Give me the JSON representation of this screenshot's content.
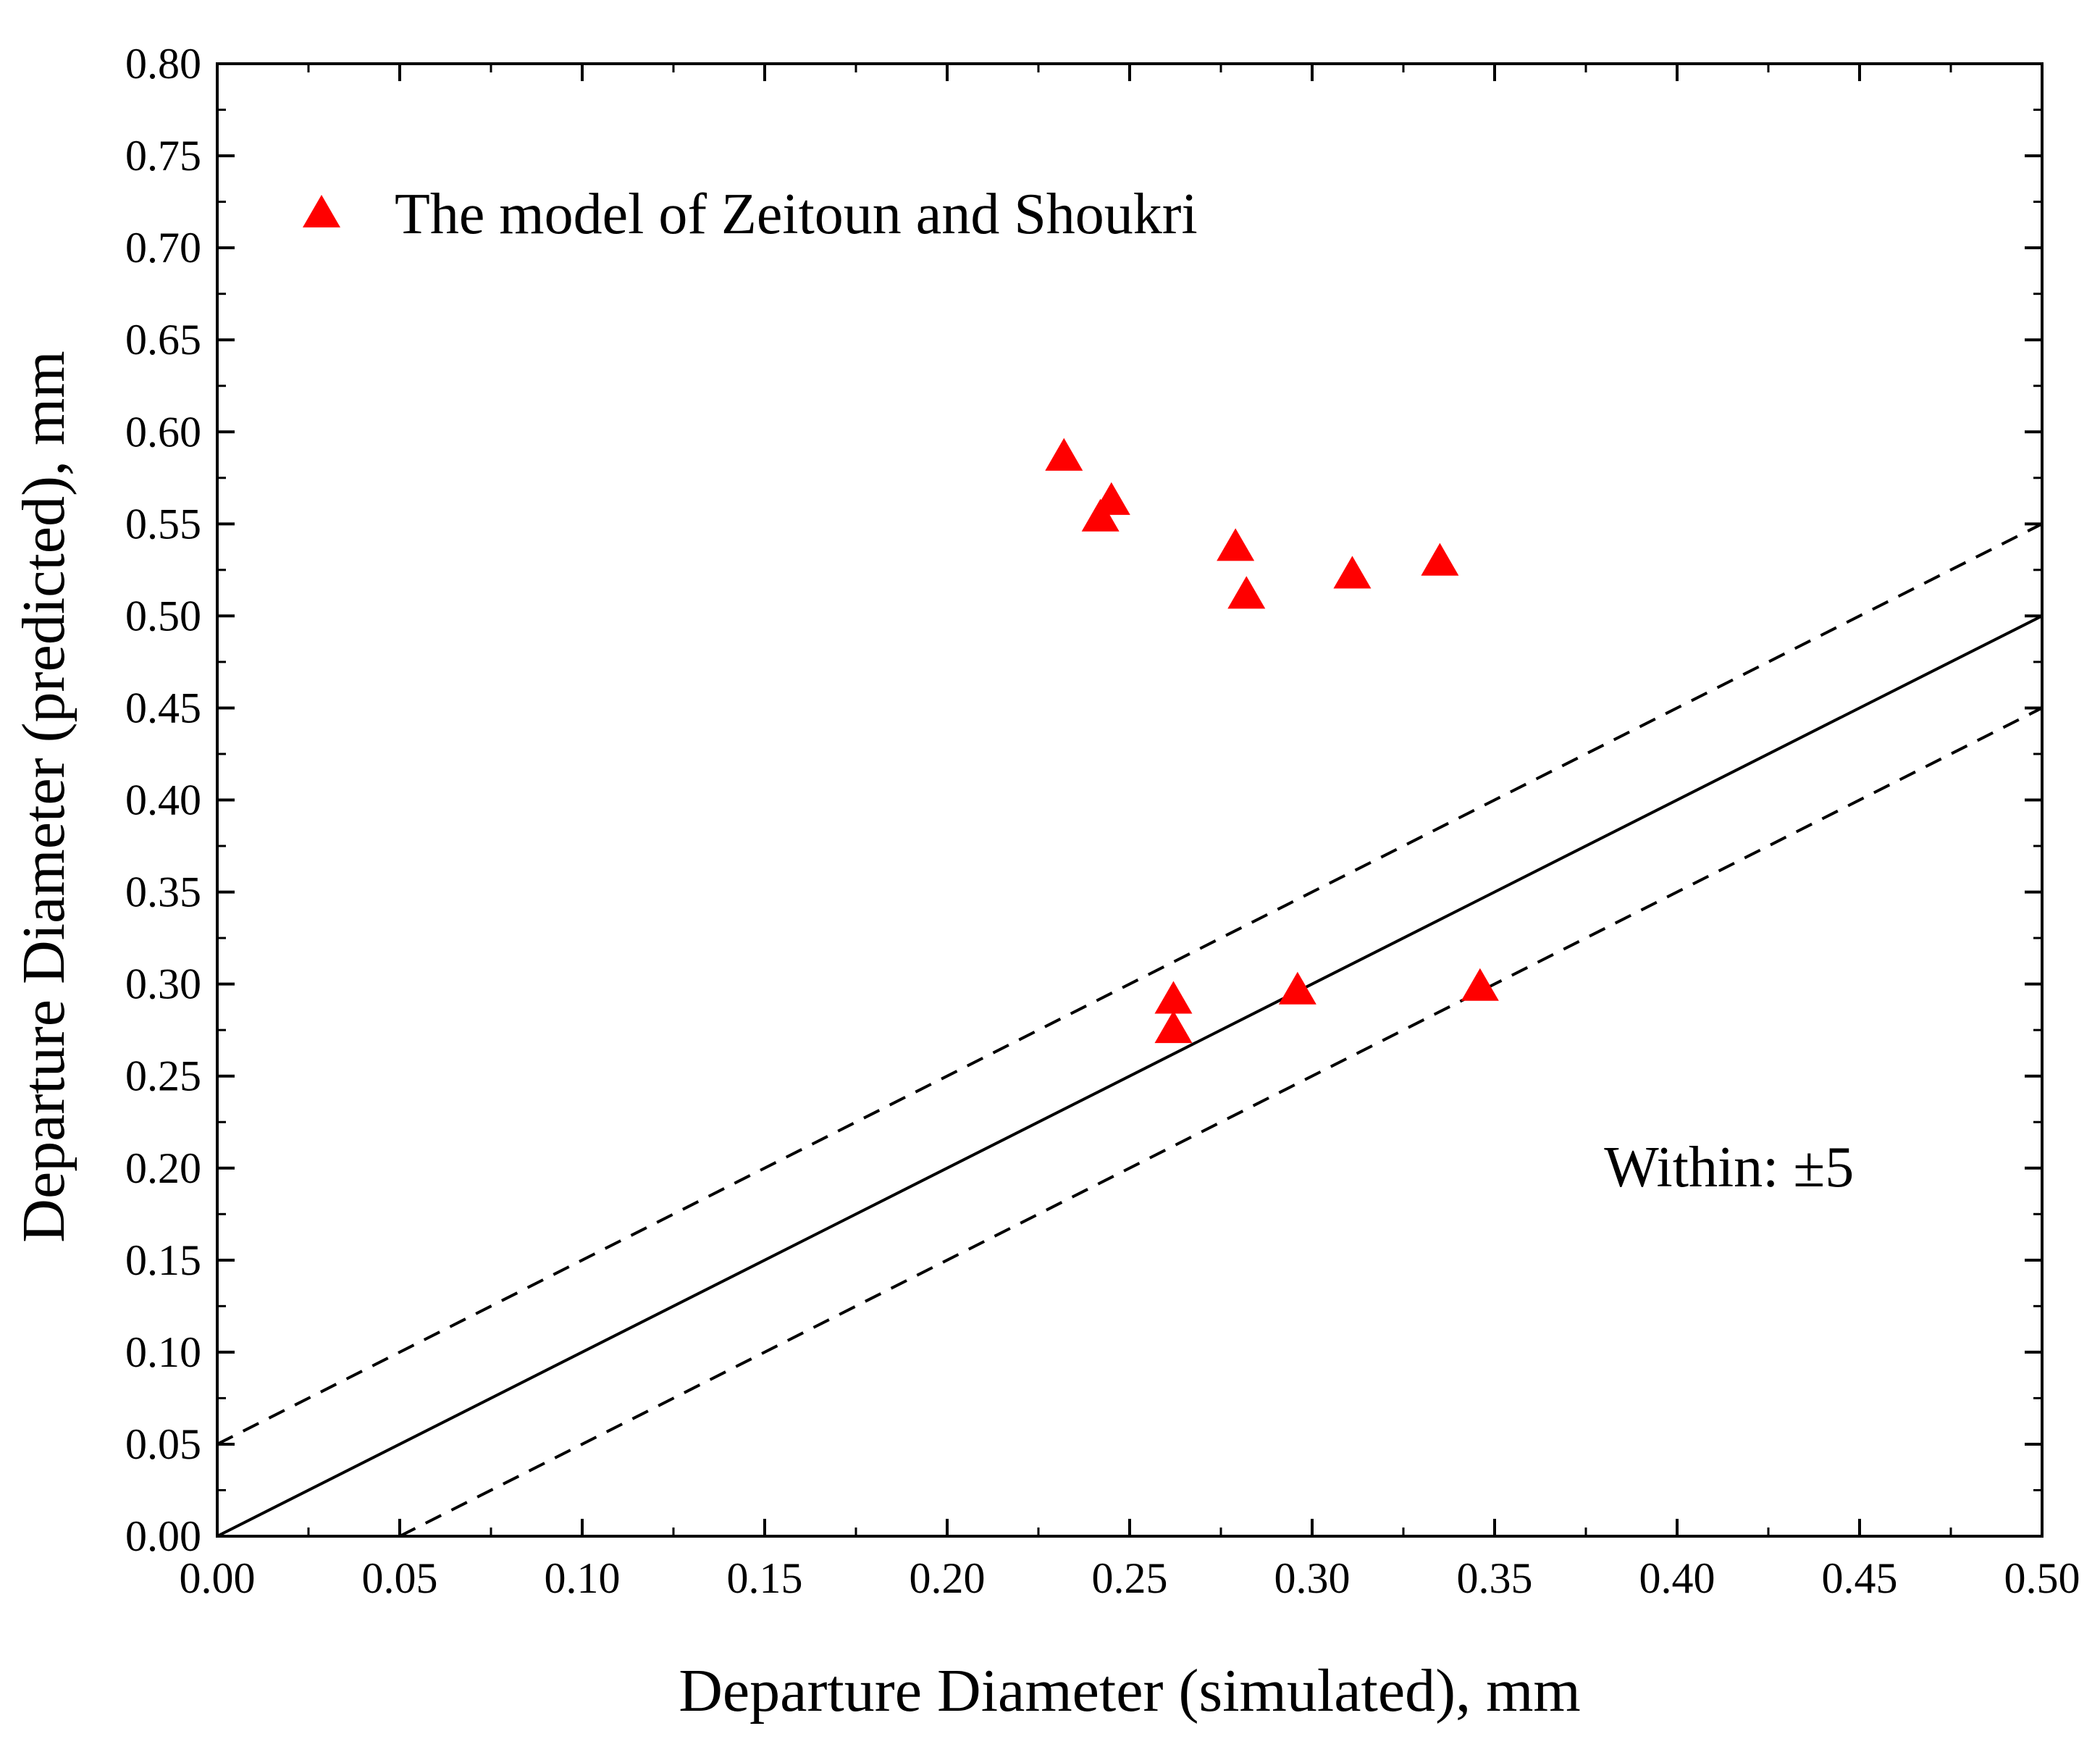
{
  "chart_data": {
    "type": "scatter",
    "title": "",
    "xlabel": "Departure Diameter (simulated), mm",
    "ylabel": "Departure Diameter (predicted), mm",
    "xlim": [
      0.0,
      0.5
    ],
    "ylim": [
      0.0,
      0.8
    ],
    "x_ticks": [
      "0.00",
      "0.05",
      "0.10",
      "0.15",
      "0.20",
      "0.25",
      "0.30",
      "0.35",
      "0.40",
      "0.45",
      "0.50"
    ],
    "y_ticks": [
      "0.00",
      "0.05",
      "0.10",
      "0.15",
      "0.20",
      "0.25",
      "0.30",
      "0.35",
      "0.40",
      "0.45",
      "0.50",
      "0.55",
      "0.60",
      "0.65",
      "0.70",
      "0.75",
      "0.80"
    ],
    "grid": false,
    "legend_position": "top-left",
    "series": [
      {
        "name": "The model of Zeitoun and Shoukri",
        "marker": "triangle",
        "color": "#ff0000",
        "points": [
          {
            "x": 0.232,
            "y": 0.586
          },
          {
            "x": 0.245,
            "y": 0.562
          },
          {
            "x": 0.242,
            "y": 0.553
          },
          {
            "x": 0.279,
            "y": 0.537
          },
          {
            "x": 0.282,
            "y": 0.511
          },
          {
            "x": 0.311,
            "y": 0.522
          },
          {
            "x": 0.335,
            "y": 0.529
          },
          {
            "x": 0.262,
            "y": 0.291
          },
          {
            "x": 0.262,
            "y": 0.275
          },
          {
            "x": 0.296,
            "y": 0.296
          },
          {
            "x": 0.346,
            "y": 0.298
          }
        ]
      }
    ],
    "reference_lines": [
      {
        "name": "y = x",
        "style": "solid",
        "x": [
          0.0,
          0.5
        ],
        "y": [
          0.0,
          0.5
        ]
      },
      {
        "name": "+0.05",
        "style": "dashed",
        "x": [
          0.0,
          0.5
        ],
        "y": [
          0.05,
          0.55
        ]
      },
      {
        "name": "-0.05",
        "style": "dashed",
        "x": [
          0.05,
          0.5
        ],
        "y": [
          0.0,
          0.45
        ]
      }
    ],
    "annotations": [
      {
        "text": "Within: ±5",
        "x": 0.38,
        "y": 0.19
      }
    ]
  }
}
